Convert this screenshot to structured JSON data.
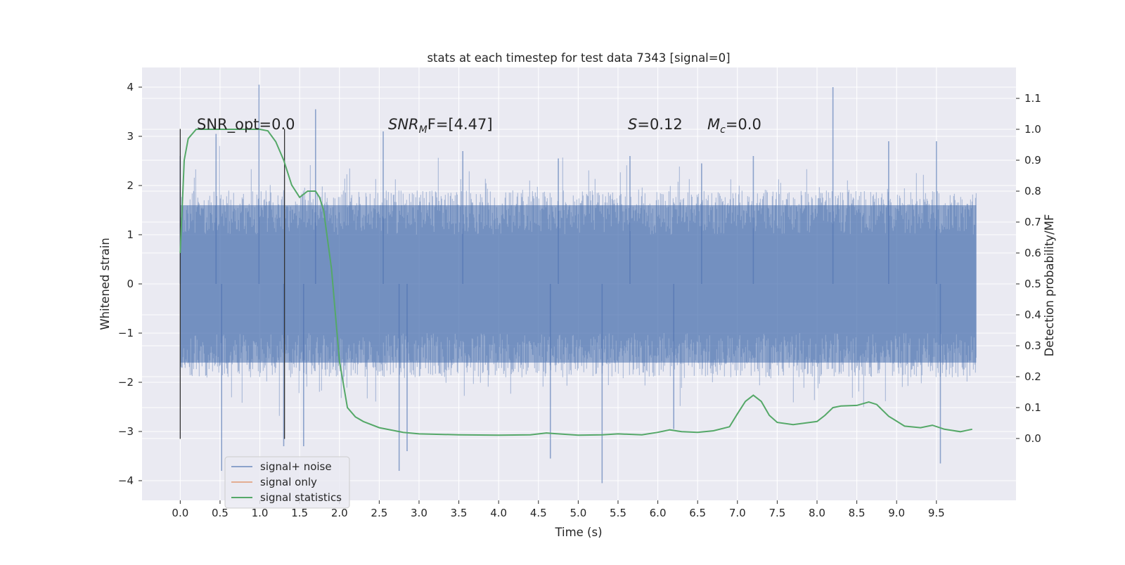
{
  "chart_data": {
    "type": "line",
    "title": "stats at each timestep for test data 7343 [signal=0]",
    "xlabel": "Time (s)",
    "ylabel": "Whitened strain",
    "ylabel_right": "Detection probability/MF",
    "xlim": [
      -0.48,
      10.5
    ],
    "ylim": [
      -4.4,
      4.4
    ],
    "ylim_right": [
      -0.2,
      1.2
    ],
    "x_ticks": [
      0.0,
      0.5,
      1.0,
      1.5,
      2.0,
      2.5,
      3.0,
      3.5,
      4.0,
      4.5,
      5.0,
      5.5,
      6.0,
      6.5,
      7.0,
      7.5,
      8.0,
      8.5,
      9.0,
      9.5
    ],
    "x_tick_labels": [
      "0.0",
      "0.5",
      "1.0",
      "1.5",
      "2.0",
      "2.5",
      "3.0",
      "3.5",
      "4.0",
      "4.5",
      "5.0",
      "5.5",
      "6.0",
      "6.5",
      "7.0",
      "7.5",
      "8.0",
      "8.5",
      "9.0",
      "9.5"
    ],
    "y_ticks": [
      4,
      3,
      2,
      1,
      0,
      -1,
      -2,
      -3,
      -4
    ],
    "y_tick_labels": [
      "4",
      "3",
      "2",
      "1",
      "0",
      "−1",
      "−2",
      "−3",
      "−4"
    ],
    "y2_ticks": [
      1.1,
      1.0,
      0.9,
      0.8,
      0.7,
      0.6,
      0.5,
      0.4,
      0.3,
      0.2,
      0.1,
      0.0
    ],
    "y2_tick_labels": [
      "1.1",
      "1.0",
      "0.9",
      "0.8",
      "0.7",
      "0.6",
      "0.5",
      "0.4",
      "0.3",
      "0.2",
      "0.1",
      "0.0"
    ],
    "grid": true,
    "legend_position": "lower-left",
    "series": [
      {
        "name": "signal+ noise",
        "axis": "left",
        "color": "#4c72b0",
        "style": "dense-noise",
        "typical_envelope": [
          -1.6,
          1.6
        ],
        "peaks_high": [
          [
            0.0,
            2.6
          ],
          [
            0.45,
            3.05
          ],
          [
            0.99,
            4.05
          ],
          [
            1.7,
            3.55
          ],
          [
            2.55,
            3.1
          ],
          [
            3.55,
            2.7
          ],
          [
            4.75,
            2.55
          ],
          [
            5.65,
            2.6
          ],
          [
            6.55,
            2.45
          ],
          [
            7.2,
            2.6
          ],
          [
            8.2,
            4.0
          ],
          [
            8.9,
            2.9
          ],
          [
            9.5,
            2.9
          ]
        ],
        "peaks_low": [
          [
            0.52,
            -3.8
          ],
          [
            1.3,
            -3.3
          ],
          [
            1.55,
            -3.3
          ],
          [
            2.75,
            -3.8
          ],
          [
            2.85,
            -3.4
          ],
          [
            4.65,
            -3.55
          ],
          [
            5.3,
            -4.05
          ],
          [
            6.2,
            -2.95
          ],
          [
            9.55,
            -3.65
          ]
        ]
      },
      {
        "name": "signal only",
        "axis": "left",
        "color": "#dd8452",
        "x": [],
        "y": []
      },
      {
        "name": "signal statistics",
        "axis": "right",
        "color": "#55a868",
        "x": [
          0.0,
          0.05,
          0.1,
          0.2,
          0.3,
          0.5,
          0.8,
          1.0,
          1.1,
          1.2,
          1.3,
          1.4,
          1.5,
          1.6,
          1.7,
          1.75,
          1.8,
          1.9,
          2.0,
          2.1,
          2.2,
          2.3,
          2.5,
          2.8,
          3.0,
          3.5,
          4.0,
          4.4,
          4.6,
          4.7,
          5.0,
          5.3,
          5.5,
          5.8,
          6.0,
          6.15,
          6.3,
          6.5,
          6.7,
          6.9,
          7.0,
          7.1,
          7.2,
          7.3,
          7.4,
          7.5,
          7.7,
          8.0,
          8.1,
          8.2,
          8.3,
          8.5,
          8.65,
          8.75,
          8.9,
          9.1,
          9.3,
          9.45,
          9.6,
          9.8,
          9.95
        ],
        "y": [
          0.6,
          0.9,
          0.97,
          1.0,
          1.0,
          1.0,
          1.0,
          1.0,
          0.995,
          0.96,
          0.9,
          0.82,
          0.78,
          0.8,
          0.8,
          0.78,
          0.74,
          0.55,
          0.25,
          0.1,
          0.07,
          0.055,
          0.035,
          0.02,
          0.015,
          0.012,
          0.011,
          0.012,
          0.018,
          0.016,
          0.011,
          0.012,
          0.015,
          0.012,
          0.02,
          0.028,
          0.022,
          0.02,
          0.025,
          0.038,
          0.08,
          0.12,
          0.14,
          0.12,
          0.075,
          0.052,
          0.045,
          0.055,
          0.075,
          0.1,
          0.105,
          0.107,
          0.118,
          0.11,
          0.072,
          0.04,
          0.035,
          0.043,
          0.03,
          0.022,
          0.03
        ]
      }
    ],
    "annotations": {
      "snr_opt": "SNR_opt=0.0",
      "snr_mf_var": "SNR",
      "snr_mf_sub": "M",
      "snr_mf_rest": "F=[4.47]",
      "s_var": "S",
      "s_val": "=0.12",
      "mc_var": "M",
      "mc_sub": "c",
      "mc_val": "=0.0"
    },
    "vlines_x": [
      0.0,
      1.31
    ]
  }
}
